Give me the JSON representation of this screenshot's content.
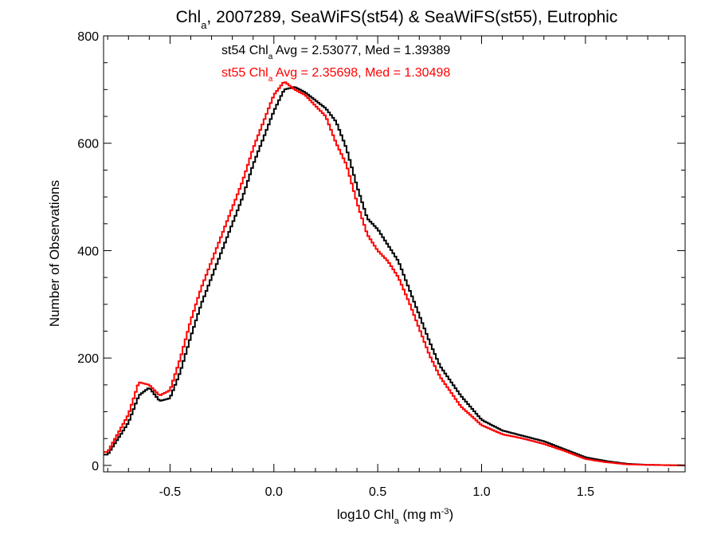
{
  "chart_data": {
    "type": "histogram-step",
    "title": {
      "prefix": "Chl",
      "sub": "a",
      "suffix": ", 2007289, SeaWiFS(st54) & SeaWiFS(st55), Eutrophic"
    },
    "xlabel": {
      "prefix": "log10 Chl",
      "sub": "a",
      "mid": " (mg m",
      "sup": "-3",
      "suffix": ")"
    },
    "ylabel": "Number of Observations",
    "xlim": [
      -0.82,
      1.98
    ],
    "ylim": [
      -12,
      800
    ],
    "x_ticks": [
      -0.5,
      0.0,
      0.5,
      1.0,
      1.5
    ],
    "x_tick_labels": [
      "-0.5",
      "0.0",
      "0.5",
      "1.0",
      "1.5"
    ],
    "y_ticks": [
      0,
      200,
      400,
      600,
      800
    ],
    "y_tick_labels": [
      "0",
      "200",
      "400",
      "600",
      "800"
    ],
    "annotations": [
      {
        "color": "#000000",
        "pre": "st54 Chl",
        "sub": "a",
        "post": " Avg = 2.53077, Med = 1.39389"
      },
      {
        "color": "#ff0000",
        "pre": "st55 Chl",
        "sub": "a",
        "post": " Avg = 2.35698, Med = 1.30498"
      }
    ],
    "series": [
      {
        "color": "#000000",
        "x": [
          -0.8,
          -0.7,
          -0.65,
          -0.6,
          -0.55,
          -0.5,
          -0.45,
          -0.4,
          -0.35,
          -0.3,
          -0.25,
          -0.2,
          -0.15,
          -0.1,
          -0.05,
          0.0,
          0.05,
          0.1,
          0.15,
          0.2,
          0.25,
          0.3,
          0.35,
          0.4,
          0.45,
          0.5,
          0.55,
          0.6,
          0.65,
          0.7,
          0.75,
          0.8,
          0.9,
          1.0,
          1.1,
          1.2,
          1.3,
          1.4,
          1.5,
          1.6,
          1.7,
          1.8,
          1.98
        ],
        "y": [
          20,
          80,
          130,
          145,
          120,
          125,
          175,
          240,
          300,
          350,
          400,
          450,
          500,
          560,
          610,
          660,
          700,
          705,
          695,
          680,
          665,
          640,
          590,
          520,
          460,
          440,
          410,
          380,
          330,
          280,
          230,
          185,
          130,
          85,
          65,
          55,
          45,
          30,
          15,
          8,
          3,
          1,
          0
        ]
      },
      {
        "color": "#ff0000",
        "x": [
          -0.8,
          -0.7,
          -0.65,
          -0.6,
          -0.55,
          -0.5,
          -0.45,
          -0.4,
          -0.35,
          -0.3,
          -0.25,
          -0.2,
          -0.15,
          -0.1,
          -0.05,
          0.0,
          0.05,
          0.1,
          0.15,
          0.2,
          0.25,
          0.3,
          0.35,
          0.4,
          0.45,
          0.5,
          0.55,
          0.6,
          0.65,
          0.7,
          0.75,
          0.8,
          0.9,
          1.0,
          1.1,
          1.2,
          1.3,
          1.4,
          1.5,
          1.6,
          1.7,
          1.8,
          1.98
        ],
        "y": [
          25,
          95,
          155,
          150,
          130,
          140,
          200,
          270,
          330,
          380,
          430,
          480,
          530,
          590,
          640,
          690,
          715,
          700,
          690,
          670,
          650,
          600,
          560,
          490,
          430,
          400,
          380,
          350,
          305,
          255,
          205,
          165,
          110,
          75,
          58,
          50,
          40,
          27,
          12,
          6,
          2,
          1,
          0
        ]
      }
    ]
  }
}
